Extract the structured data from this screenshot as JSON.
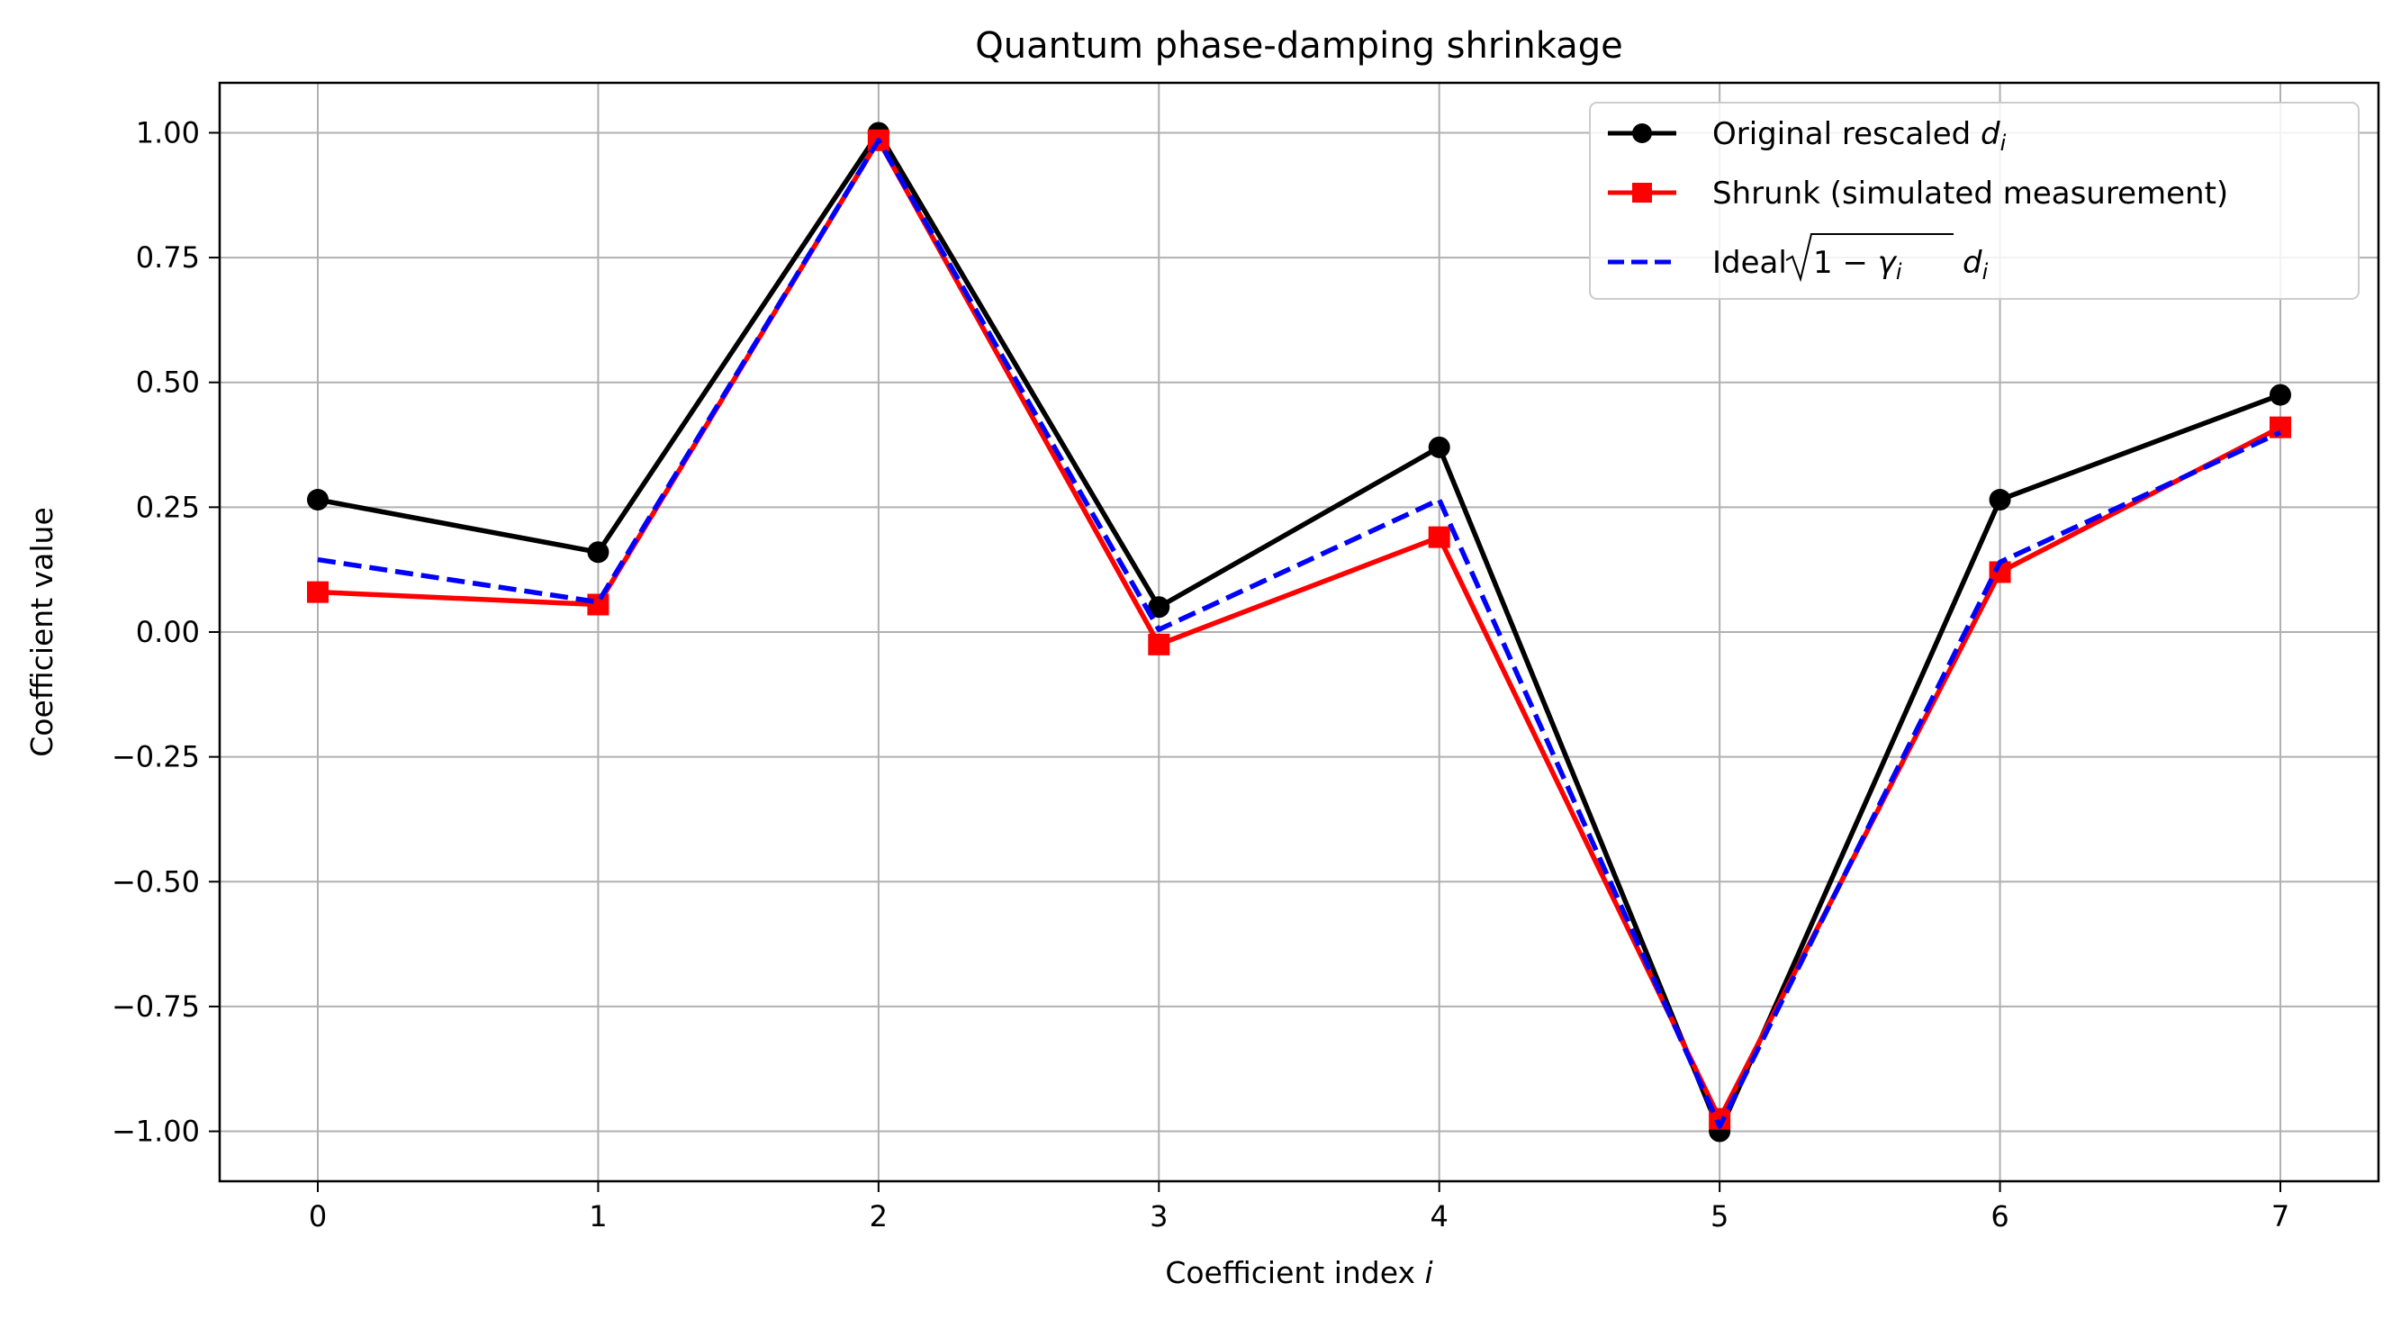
{
  "chart_data": {
    "type": "line",
    "title": "Quantum phase-damping shrinkage",
    "xlabel": "Coefficient index i",
    "ylabel": "Coefficient value",
    "x": [
      0,
      1,
      2,
      3,
      4,
      5,
      6,
      7
    ],
    "xlim": [
      -0.35,
      7.35
    ],
    "ylim": [
      -1.1,
      1.1
    ],
    "xticks": [
      "0",
      "1",
      "2",
      "3",
      "4",
      "5",
      "6",
      "7"
    ],
    "yticks": [
      "1.00",
      "0.75",
      "0.50",
      "0.25",
      "0.00",
      "−0.25",
      "−0.50",
      "−0.75",
      "−1.00"
    ],
    "ytick_values": [
      1.0,
      0.75,
      0.5,
      0.25,
      0.0,
      -0.25,
      -0.5,
      -0.75,
      -1.0
    ],
    "grid": true,
    "legend_position": "top-right",
    "series": [
      {
        "name": "Original rescaled d_i",
        "color": "#000000",
        "style": "solid",
        "marker": "circle",
        "values": [
          0.265,
          0.16,
          1.0,
          0.05,
          0.37,
          -1.0,
          0.265,
          0.475
        ]
      },
      {
        "name": "Shrunk (simulated measurement)",
        "color": "#ff0000",
        "style": "solid",
        "marker": "square",
        "values": [
          0.08,
          0.055,
          0.985,
          -0.025,
          0.19,
          -0.975,
          0.12,
          0.41
        ]
      },
      {
        "name": "Ideal √(1−γ_i) d_i",
        "color": "#0000ff",
        "style": "dashed",
        "marker": "none",
        "values": [
          0.145,
          0.06,
          0.985,
          0.005,
          0.265,
          -0.99,
          0.14,
          0.4
        ]
      }
    ]
  },
  "text": {
    "title": "Quantum phase-damping shrinkage",
    "xlabel_prefix": "Coefficient index ",
    "xlabel_var": "i",
    "ylabel": "Coefficient value",
    "legend_original_prefix": "Original rescaled ",
    "legend_original_var": "d",
    "legend_original_sub": "i",
    "legend_shrunk": "Shrunk (simulated measurement)",
    "legend_ideal_prefix": "Ideal ",
    "legend_ideal_one": "1",
    "legend_ideal_minus": " − ",
    "legend_ideal_gamma": "γ",
    "legend_ideal_gamma_sub": "i",
    "legend_ideal_d": "d",
    "legend_ideal_d_sub": "i"
  }
}
